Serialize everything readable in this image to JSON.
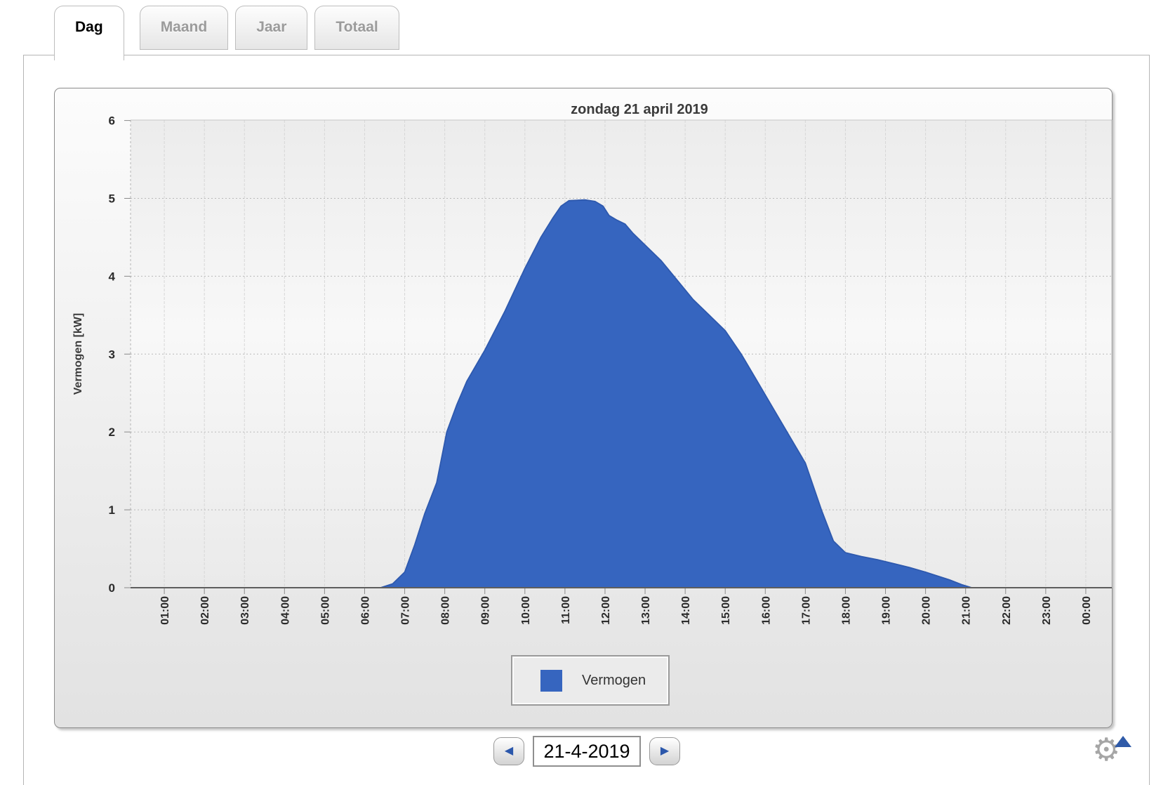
{
  "tabs": [
    {
      "label": "Dag",
      "active": true
    },
    {
      "label": "Maand",
      "active": false
    },
    {
      "label": "Jaar",
      "active": false
    },
    {
      "label": "Totaal",
      "active": false
    }
  ],
  "chart_data": {
    "type": "area",
    "title": "zondag 21 april 2019",
    "xlabel": "",
    "ylabel": "Vermogen [kW]",
    "ylim": [
      0,
      6
    ],
    "yticks": [
      0,
      1,
      2,
      3,
      4,
      5,
      6
    ],
    "xtick_labels": [
      "01:00",
      "02:00",
      "03:00",
      "04:00",
      "05:00",
      "06:00",
      "07:00",
      "08:00",
      "09:00",
      "10:00",
      "11:00",
      "12:00",
      "13:00",
      "14:00",
      "15:00",
      "16:00",
      "17:00",
      "18:00",
      "19:00",
      "20:00",
      "21:00",
      "22:00",
      "23:00",
      "00:00"
    ],
    "grid": true,
    "legend_position": "bottom",
    "series": [
      {
        "name": "Vermogen",
        "unit": "kW",
        "color": "#3665bf",
        "edge_color": "#2e59ae",
        "points": [
          [
            6.4,
            0
          ],
          [
            6.7,
            0.05
          ],
          [
            7.0,
            0.2
          ],
          [
            7.25,
            0.55
          ],
          [
            7.5,
            0.95
          ],
          [
            7.8,
            1.35
          ],
          [
            8.05,
            2.0
          ],
          [
            8.3,
            2.35
          ],
          [
            8.55,
            2.65
          ],
          [
            9.0,
            3.05
          ],
          [
            9.5,
            3.55
          ],
          [
            10.0,
            4.1
          ],
          [
            10.4,
            4.5
          ],
          [
            10.7,
            4.75
          ],
          [
            10.9,
            4.9
          ],
          [
            11.1,
            4.97
          ],
          [
            11.5,
            4.98
          ],
          [
            11.75,
            4.96
          ],
          [
            11.95,
            4.9
          ],
          [
            12.1,
            4.78
          ],
          [
            12.3,
            4.72
          ],
          [
            12.5,
            4.67
          ],
          [
            12.7,
            4.55
          ],
          [
            13.0,
            4.4
          ],
          [
            13.4,
            4.2
          ],
          [
            13.8,
            3.95
          ],
          [
            14.2,
            3.7
          ],
          [
            14.6,
            3.5
          ],
          [
            15.0,
            3.3
          ],
          [
            15.4,
            3.0
          ],
          [
            15.8,
            2.65
          ],
          [
            16.2,
            2.3
          ],
          [
            16.6,
            1.95
          ],
          [
            17.0,
            1.6
          ],
          [
            17.4,
            1.0
          ],
          [
            17.7,
            0.6
          ],
          [
            18.0,
            0.45
          ],
          [
            18.4,
            0.4
          ],
          [
            18.8,
            0.36
          ],
          [
            19.2,
            0.31
          ],
          [
            19.6,
            0.26
          ],
          [
            20.0,
            0.2
          ],
          [
            20.3,
            0.15
          ],
          [
            20.6,
            0.1
          ],
          [
            20.9,
            0.04
          ],
          [
            21.15,
            0
          ]
        ]
      }
    ]
  },
  "nav": {
    "date_value": "21-4-2019",
    "prev_icon": "◀",
    "next_icon": "▶"
  },
  "settings": {
    "gear_icon": "⚙"
  },
  "colors": {
    "accent_blue": "#3665bf",
    "arrow_blue": "#2f5aa8",
    "inactive_tab_text": "#9b9b9b"
  }
}
